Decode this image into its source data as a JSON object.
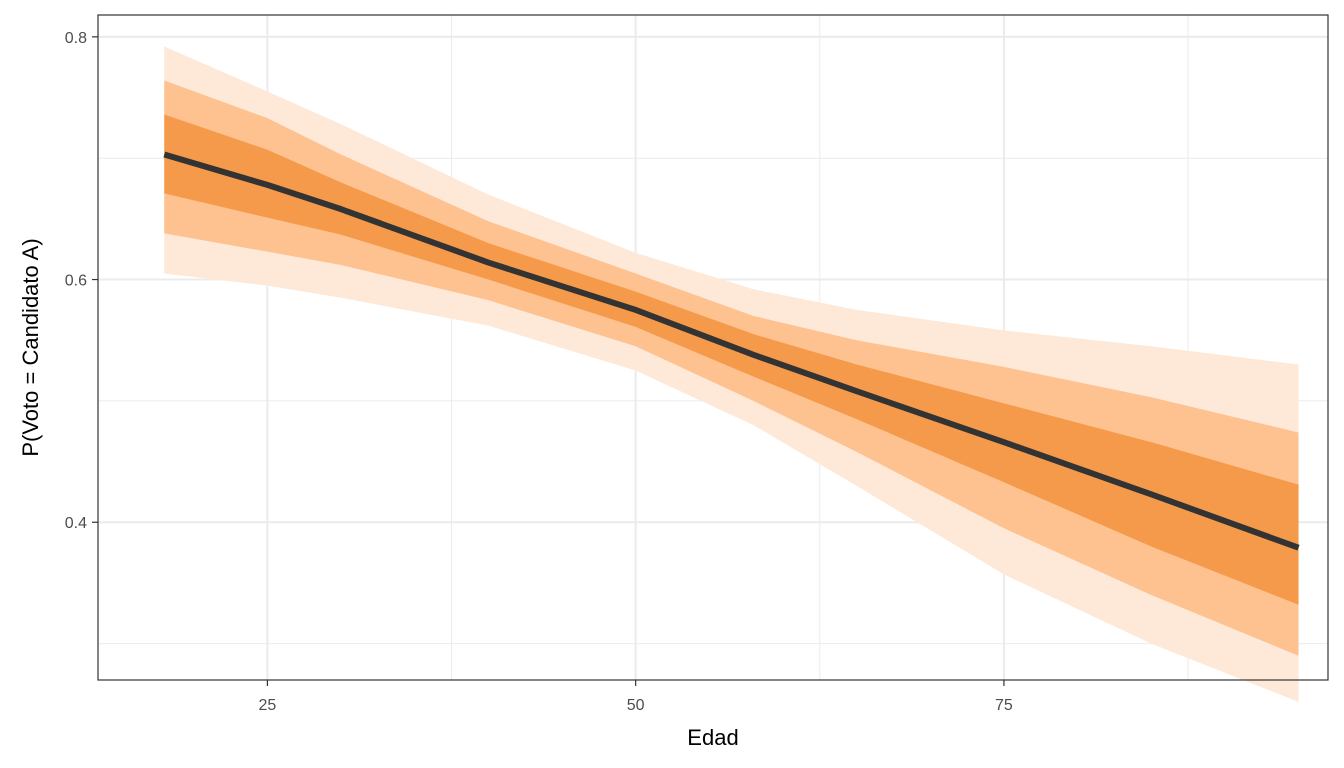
{
  "chart_data": {
    "type": "area",
    "title": "",
    "xlabel": "Edad",
    "ylabel": "P(Voto = Candidato A)",
    "xlim": [
      13.5,
      97
    ],
    "ylim": [
      0.27,
      0.818
    ],
    "x_ticks": [
      25,
      50,
      75
    ],
    "y_ticks": [
      0.4,
      0.6,
      0.8
    ],
    "x_tick_labels": [
      "25",
      "50",
      "75"
    ],
    "y_tick_labels": [
      "0.4",
      "0.6",
      "0.8"
    ],
    "grid": true,
    "legend": "none",
    "x": [
      18,
      25,
      30,
      40,
      50,
      58,
      65,
      75,
      85,
      95
    ],
    "series": [
      {
        "role": "line",
        "values": [
          0.703,
          0.678,
          0.658,
          0.614,
          0.575,
          0.538,
          0.508,
          0.466,
          0.423,
          0.379
        ],
        "color": "#333333"
      },
      {
        "role": "band",
        "lower": [
          0.671,
          0.651,
          0.637,
          0.6,
          0.561,
          0.52,
          0.485,
          0.433,
          0.38,
          0.332
        ],
        "upper": [
          0.736,
          0.707,
          0.68,
          0.63,
          0.59,
          0.555,
          0.53,
          0.498,
          0.466,
          0.431
        ],
        "color": "#f59a4a"
      },
      {
        "role": "band",
        "lower": [
          0.638,
          0.623,
          0.612,
          0.583,
          0.545,
          0.5,
          0.458,
          0.395,
          0.34,
          0.29
        ],
        "upper": [
          0.764,
          0.733,
          0.703,
          0.648,
          0.605,
          0.57,
          0.55,
          0.528,
          0.503,
          0.474
        ],
        "color": "#fdc290"
      },
      {
        "role": "band",
        "lower": [
          0.605,
          0.595,
          0.585,
          0.562,
          0.525,
          0.48,
          0.43,
          0.357,
          0.3,
          0.252
        ],
        "upper": [
          0.792,
          0.755,
          0.728,
          0.67,
          0.622,
          0.592,
          0.575,
          0.558,
          0.545,
          0.53
        ],
        "color": "#fee8d8"
      }
    ]
  }
}
